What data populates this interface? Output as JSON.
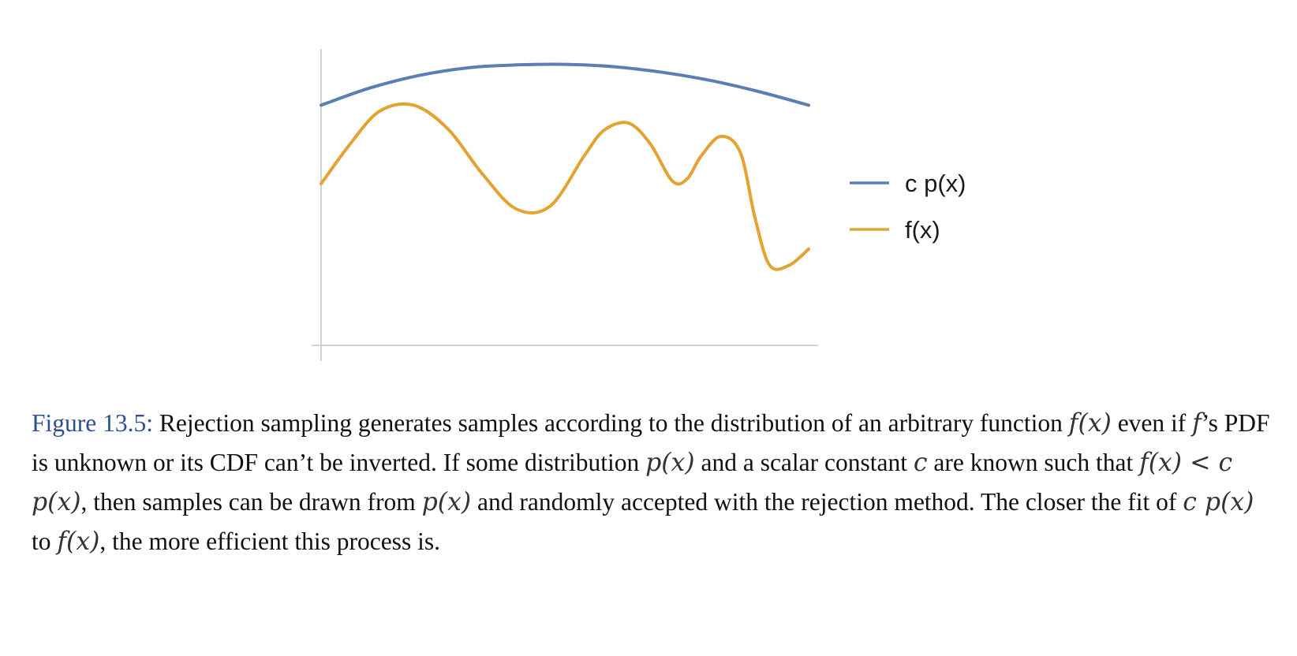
{
  "chart_data": {
    "type": "line",
    "title": "",
    "xlabel": "",
    "ylabel": "",
    "xlim": [
      0,
      1
    ],
    "ylim": [
      0,
      1
    ],
    "grid": false,
    "legend_position": "right",
    "series": [
      {
        "name": "c p(x)",
        "color": "#5a7fb4",
        "x": [
          0,
          0.1,
          0.2,
          0.3,
          0.4,
          0.5,
          0.6,
          0.7,
          0.8,
          0.9,
          1.0
        ],
        "y": [
          0.81,
          0.868,
          0.91,
          0.936,
          0.946,
          0.948,
          0.94,
          0.921,
          0.893,
          0.855,
          0.81
        ]
      },
      {
        "name": "f(x)",
        "color": "#e3a232",
        "x": [
          0,
          0.06,
          0.12,
          0.19,
          0.26,
          0.33,
          0.4,
          0.47,
          0.54,
          0.58,
          0.63,
          0.675,
          0.72,
          0.75,
          0.78,
          0.82,
          0.86,
          0.89,
          0.92,
          0.96,
          1.0
        ],
        "y": [
          0.545,
          0.68,
          0.79,
          0.81,
          0.73,
          0.58,
          0.46,
          0.47,
          0.64,
          0.725,
          0.75,
          0.68,
          0.555,
          0.56,
          0.64,
          0.705,
          0.65,
          0.43,
          0.27,
          0.27,
          0.325
        ]
      }
    ]
  },
  "caption": {
    "label": "Figure 13.5:",
    "parts": [
      {
        "t": " Rejection sampling generates samples according to the distribution of an arbitrary function "
      },
      {
        "m": "f(x)"
      },
      {
        "t": " even if "
      },
      {
        "m": "f"
      },
      {
        "t": "’s PDF is unknown or its CDF can’t be inverted. If some distribution "
      },
      {
        "m": "p(x)"
      },
      {
        "t": " and a scalar constant "
      },
      {
        "m": "c"
      },
      {
        "t": " are known such that "
      },
      {
        "m": "f(x) < c p(x)"
      },
      {
        "t": ", then samples can be drawn from "
      },
      {
        "m": "p(x)"
      },
      {
        "t": " and randomly accepted with the rejection method. The closer the fit of "
      },
      {
        "m": "c p(x)"
      },
      {
        "t": " to "
      },
      {
        "m": "f(x)"
      },
      {
        "t": ", the more efficient this process is."
      }
    ]
  }
}
